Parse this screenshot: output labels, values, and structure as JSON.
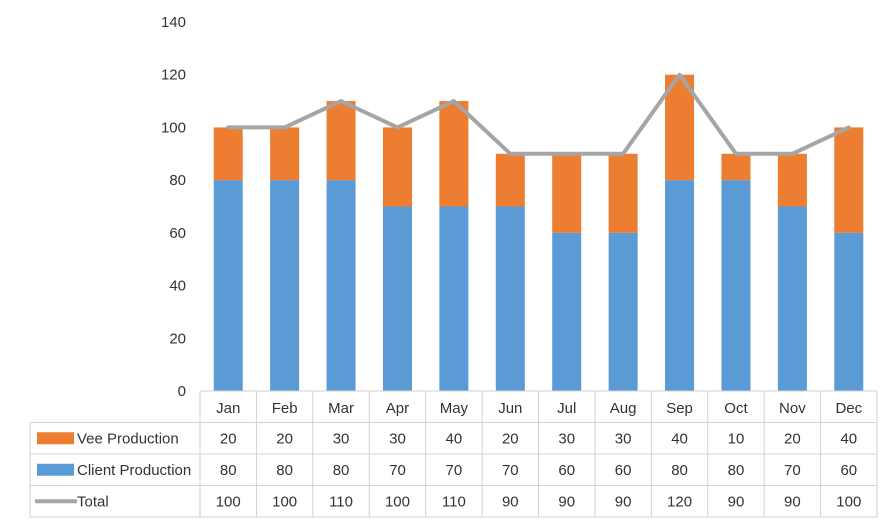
{
  "chart_data": {
    "type": "bar",
    "stacked": true,
    "categories": [
      "Jan",
      "Feb",
      "Mar",
      "Apr",
      "May",
      "Jun",
      "Jul",
      "Aug",
      "Sep",
      "Oct",
      "Nov",
      "Dec"
    ],
    "series": [
      {
        "name": "Client Production",
        "type": "bar",
        "color": "#5B9BD5",
        "values": [
          80,
          80,
          80,
          70,
          70,
          70,
          60,
          60,
          80,
          80,
          70,
          60
        ]
      },
      {
        "name": "Vee Production",
        "type": "bar",
        "color": "#ED7D31",
        "values": [
          20,
          20,
          30,
          30,
          40,
          20,
          30,
          30,
          40,
          10,
          20,
          40
        ]
      },
      {
        "name": "Total",
        "type": "line",
        "color": "#A5A5A5",
        "values": [
          100,
          100,
          110,
          100,
          110,
          90,
          90,
          90,
          120,
          90,
          90,
          100
        ]
      }
    ],
    "table_rows": [
      {
        "name": "Vee Production",
        "values": [
          "20",
          "20",
          "30",
          "30",
          "40",
          "20",
          "30",
          "30",
          "40",
          "10",
          "20",
          "40"
        ]
      },
      {
        "name": "Client Production",
        "values": [
          "80",
          "80",
          "80",
          "70",
          "70",
          "70",
          "60",
          "60",
          "80",
          "80",
          "70",
          "60"
        ]
      },
      {
        "name": "Total",
        "values": [
          "100",
          "100",
          "110",
          "100",
          "110",
          "90",
          "90",
          "90",
          "120",
          "90",
          "90",
          "100"
        ]
      }
    ],
    "ylim": [
      0,
      140
    ],
    "yticks": [
      "0",
      "20",
      "40",
      "60",
      "80",
      "100",
      "120",
      "140"
    ],
    "grid": false,
    "legend": "data-table"
  }
}
